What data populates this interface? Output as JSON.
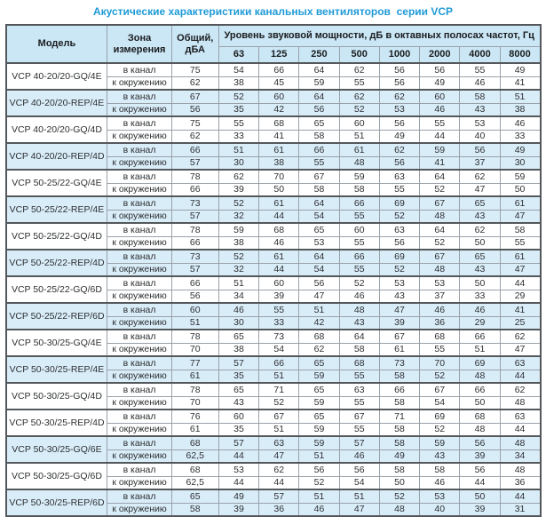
{
  "title": "Акустические характеристики канальных вентиляторов  серии VCP",
  "colors": {
    "title_blue": "#1e9bd7",
    "header_bg": "#cbe7f6",
    "shaded_row_bg": "#d9edf9",
    "grid_line": "#99a1a8",
    "frame_line": "#54585b"
  },
  "table": {
    "headers": {
      "model": "Модель",
      "zone": "Зона измерения",
      "total": "Общий, дБА",
      "band_group": "Уровень звуковой мощности, дБ в октавных полосах частот, Гц",
      "bands": [
        "63",
        "125",
        "250",
        "500",
        "1000",
        "2000",
        "4000",
        "8000"
      ]
    },
    "zone_labels": [
      "в канал",
      "к окружению"
    ],
    "groups": [
      {
        "model": "VCP 40-20/20-GQ/4E",
        "shade": false,
        "duct": {
          "total": "75",
          "bands": [
            54,
            66,
            64,
            62,
            56,
            56,
            55,
            49
          ]
        },
        "ambient": {
          "total": "62",
          "bands": [
            38,
            45,
            59,
            55,
            56,
            49,
            46,
            41
          ]
        }
      },
      {
        "model": "VCP 40-20/20-REP/4E",
        "shade": true,
        "duct": {
          "total": "67",
          "bands": [
            52,
            60,
            64,
            62,
            62,
            60,
            58,
            51
          ]
        },
        "ambient": {
          "total": "56",
          "bands": [
            35,
            42,
            56,
            52,
            53,
            46,
            43,
            38
          ]
        }
      },
      {
        "model": "VCP 40-20/20-GQ/4D",
        "shade": false,
        "duct": {
          "total": "75",
          "bands": [
            55,
            68,
            65,
            60,
            56,
            55,
            53,
            46
          ]
        },
        "ambient": {
          "total": "62",
          "bands": [
            33,
            41,
            58,
            51,
            49,
            44,
            40,
            33
          ]
        }
      },
      {
        "model": "VCP 40-20/20-REP/4D",
        "shade": true,
        "duct": {
          "total": "66",
          "bands": [
            51,
            61,
            66,
            61,
            62,
            59,
            56,
            49
          ]
        },
        "ambient": {
          "total": "57",
          "bands": [
            30,
            38,
            55,
            48,
            56,
            41,
            37,
            30
          ]
        }
      },
      {
        "model": "VCP 50-25/22-GQ/4E",
        "shade": false,
        "duct": {
          "total": "78",
          "bands": [
            62,
            70,
            67,
            59,
            63,
            64,
            62,
            59
          ]
        },
        "ambient": {
          "total": "66",
          "bands": [
            39,
            50,
            58,
            58,
            55,
            52,
            47,
            50
          ]
        }
      },
      {
        "model": "VCP 50-25/22-REP/4E",
        "shade": true,
        "duct": {
          "total": "73",
          "bands": [
            52,
            61,
            64,
            66,
            69,
            67,
            65,
            61
          ]
        },
        "ambient": {
          "total": "57",
          "bands": [
            32,
            44,
            54,
            55,
            52,
            48,
            43,
            47
          ]
        }
      },
      {
        "model": "VCP 50-25/22-GQ/4D",
        "shade": false,
        "duct": {
          "total": "78",
          "bands": [
            59,
            68,
            65,
            60,
            63,
            64,
            62,
            58
          ]
        },
        "ambient": {
          "total": "66",
          "bands": [
            38,
            46,
            53,
            55,
            56,
            52,
            50,
            55
          ]
        }
      },
      {
        "model": "VCP 50-25/22-REP/4D",
        "shade": true,
        "duct": {
          "total": "73",
          "bands": [
            52,
            61,
            64,
            66,
            69,
            67,
            65,
            61
          ]
        },
        "ambient": {
          "total": "57",
          "bands": [
            32,
            44,
            54,
            55,
            52,
            48,
            43,
            47
          ]
        }
      },
      {
        "model": "VCP 50-25/22-GQ/6D",
        "shade": false,
        "duct": {
          "total": "66",
          "bands": [
            51,
            60,
            56,
            52,
            53,
            53,
            50,
            44
          ]
        },
        "ambient": {
          "total": "56",
          "bands": [
            34,
            39,
            47,
            46,
            43,
            37,
            33,
            29
          ]
        }
      },
      {
        "model": "VCP 50-25/22-REP/6D",
        "shade": true,
        "duct": {
          "total": "60",
          "bands": [
            46,
            55,
            51,
            48,
            47,
            46,
            46,
            41
          ]
        },
        "ambient": {
          "total": "51",
          "bands": [
            30,
            33,
            42,
            43,
            39,
            36,
            29,
            25
          ]
        }
      },
      {
        "model": "VCP 50-30/25-GQ/4E",
        "shade": false,
        "duct": {
          "total": "78",
          "bands": [
            65,
            73,
            68,
            64,
            67,
            68,
            66,
            62
          ]
        },
        "ambient": {
          "total": "70",
          "bands": [
            38,
            54,
            62,
            58,
            61,
            55,
            51,
            47
          ]
        }
      },
      {
        "model": "VCP 50-30/25-REP/4E",
        "shade": true,
        "duct": {
          "total": "77",
          "bands": [
            57,
            66,
            65,
            68,
            73,
            70,
            69,
            63
          ]
        },
        "ambient": {
          "total": "61",
          "bands": [
            35,
            51,
            59,
            55,
            58,
            52,
            48,
            44
          ]
        }
      },
      {
        "model": "VCP 50-30/25-GQ/4D",
        "shade": false,
        "duct": {
          "total": "78",
          "bands": [
            65,
            71,
            65,
            63,
            66,
            67,
            66,
            62
          ]
        },
        "ambient": {
          "total": "70",
          "bands": [
            43,
            52,
            59,
            55,
            58,
            54,
            50,
            48
          ]
        }
      },
      {
        "model": "VCP 50-30/25-REP/4D",
        "shade": false,
        "duct": {
          "total": "76",
          "bands": [
            60,
            67,
            65,
            67,
            71,
            69,
            68,
            63
          ]
        },
        "ambient": {
          "total": "61",
          "bands": [
            35,
            51,
            59,
            55,
            58,
            52,
            48,
            44
          ]
        }
      },
      {
        "model": "VCP 50-30/25-GQ/6E",
        "shade": true,
        "duct": {
          "total": "68",
          "bands": [
            57,
            63,
            59,
            57,
            58,
            59,
            56,
            48
          ]
        },
        "ambient": {
          "total": "62,5",
          "bands": [
            44,
            47,
            51,
            46,
            49,
            43,
            39,
            34
          ]
        }
      },
      {
        "model": "VCP 50-30/25-GQ/6D",
        "shade": false,
        "duct": {
          "total": "68",
          "bands": [
            53,
            62,
            56,
            56,
            58,
            58,
            56,
            48
          ]
        },
        "ambient": {
          "total": "62,5",
          "bands": [
            44,
            44,
            52,
            54,
            50,
            46,
            44,
            36
          ]
        }
      },
      {
        "model": "VCP 50-30/25-REP/6D",
        "shade": true,
        "duct": {
          "total": "65",
          "bands": [
            49,
            57,
            51,
            51,
            52,
            53,
            50,
            44
          ]
        },
        "ambient": {
          "total": "58",
          "bands": [
            39,
            36,
            46,
            47,
            48,
            40,
            39,
            31
          ]
        }
      }
    ]
  }
}
